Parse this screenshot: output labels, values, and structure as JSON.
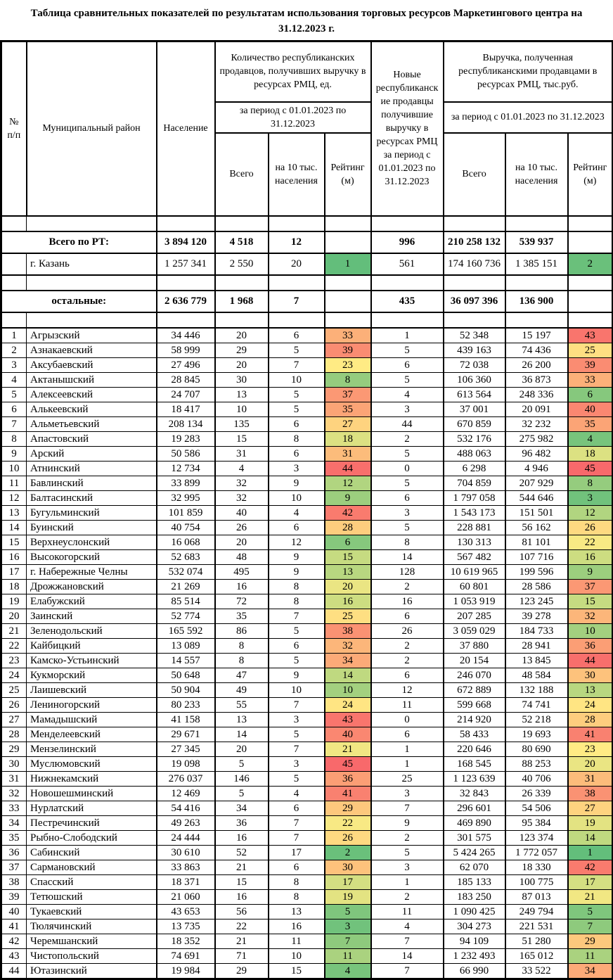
{
  "title": "Таблица сравнительных показателей по результатам использования торговых ресурсов Маркетингового центра на 31.12.2023 г.",
  "header": {
    "col_num": "№ п/п",
    "col_district": "Муниципальный район",
    "col_population": "Население",
    "group_sellers": "Количество республиканских продавцов, получивших выручку в ресурсах РМЦ, ед.",
    "period": "за период с 01.01.2023 по 31.12.2023",
    "col_new_sellers": "Новые республиканские продавцы получившие выручку в ресурсах РМЦ за период с 01.01.2023 по 31.12.2023",
    "group_revenue": "Выручка, полученная республиканскими продавцами в ресурсах РМЦ, тыс.руб.",
    "col_total": "Всего",
    "col_per10k": "на 10 тыс. населения",
    "col_rating": "Рейтинг (м)"
  },
  "rating_scale": {
    "min": 1,
    "mid": 23,
    "max": 45,
    "min_color": "#63BE7B",
    "mid_color": "#FFEB84",
    "max_color": "#F8696B"
  },
  "summary_rows": [
    {
      "label": "Всего по РТ:",
      "merged": true,
      "bold": true,
      "population": "3 894 120",
      "sellers_total": "4 518",
      "sellers_per10k": "12",
      "sellers_rating": null,
      "new_sellers": "996",
      "revenue_total": "210 258 132",
      "revenue_per10k": "539 937",
      "revenue_rating": null
    },
    {
      "label": "г. Казань",
      "merged": false,
      "bold": false,
      "population": "1 257 341",
      "sellers_total": "2 550",
      "sellers_per10k": "20",
      "sellers_rating": 1,
      "new_sellers": "561",
      "revenue_total": "174 160 736",
      "revenue_per10k": "1 385 151",
      "revenue_rating": 2
    },
    {
      "label": "остальные:",
      "merged": true,
      "bold": true,
      "population": "2 636 779",
      "sellers_total": "1 968",
      "sellers_per10k": "7",
      "sellers_rating": null,
      "new_sellers": "435",
      "revenue_total": "36 097 396",
      "revenue_per10k": "136 900",
      "revenue_rating": null
    }
  ],
  "columns_order": [
    "num",
    "name",
    "population",
    "sellers_total",
    "sellers_per10k",
    "sellers_rating",
    "new_sellers",
    "revenue_total",
    "revenue_per10k",
    "revenue_rating"
  ],
  "districts": [
    [
      "1",
      "Агрызский",
      "34 446",
      "20",
      "6",
      33,
      "1",
      "52 348",
      "15 197",
      43
    ],
    [
      "2",
      "Азнакаевский",
      "58 999",
      "29",
      "5",
      39,
      "5",
      "439 163",
      "74 436",
      25
    ],
    [
      "3",
      "Аксубаевский",
      "27 496",
      "20",
      "7",
      23,
      "6",
      "72 038",
      "26 200",
      39
    ],
    [
      "4",
      "Актанышский",
      "28 845",
      "30",
      "10",
      8,
      "5",
      "106 360",
      "36 873",
      33
    ],
    [
      "5",
      "Алексеевский",
      "24 707",
      "13",
      "5",
      37,
      "4",
      "613 564",
      "248 336",
      6
    ],
    [
      "6",
      "Алькеевский",
      "18 417",
      "10",
      "5",
      35,
      "3",
      "37 001",
      "20 091",
      40
    ],
    [
      "7",
      "Альметьевский",
      "208 134",
      "135",
      "6",
      27,
      "44",
      "670 859",
      "32 232",
      35
    ],
    [
      "8",
      "Апастовский",
      "19 283",
      "15",
      "8",
      18,
      "2",
      "532 176",
      "275 982",
      4
    ],
    [
      "9",
      "Арский",
      "50 586",
      "31",
      "6",
      31,
      "5",
      "488 063",
      "96 482",
      18
    ],
    [
      "10",
      "Атнинский",
      "12 734",
      "4",
      "3",
      44,
      "0",
      "6 298",
      "4 946",
      45
    ],
    [
      "11",
      "Бавлинский",
      "33 899",
      "32",
      "9",
      12,
      "5",
      "704 859",
      "207 929",
      8
    ],
    [
      "12",
      "Балтасинский",
      "32 995",
      "32",
      "10",
      9,
      "6",
      "1 797 058",
      "544 646",
      3
    ],
    [
      "13",
      "Бугульминский",
      "101 859",
      "40",
      "4",
      42,
      "3",
      "1 543 173",
      "151 501",
      12
    ],
    [
      "14",
      "Буинский",
      "40 754",
      "26",
      "6",
      28,
      "5",
      "228 881",
      "56 162",
      26
    ],
    [
      "15",
      "Верхнеуслонский",
      "16 068",
      "20",
      "12",
      6,
      "8",
      "130 313",
      "81 101",
      22
    ],
    [
      "16",
      "Высокогорский",
      "52 683",
      "48",
      "9",
      15,
      "14",
      "567 482",
      "107 716",
      16
    ],
    [
      "17",
      "г. Набережные Челны",
      "532 074",
      "495",
      "9",
      13,
      "128",
      "10 619 965",
      "199 596",
      9
    ],
    [
      "18",
      "Дрожжановский",
      "21 269",
      "16",
      "8",
      20,
      "2",
      "60 801",
      "28 586",
      37
    ],
    [
      "19",
      "Елабужский",
      "85 514",
      "72",
      "8",
      16,
      "16",
      "1 053 919",
      "123 245",
      15
    ],
    [
      "20",
      "Заинский",
      "52 774",
      "35",
      "7",
      25,
      "6",
      "207 285",
      "39 278",
      32
    ],
    [
      "21",
      "Зеленодольский",
      "165 592",
      "86",
      "5",
      38,
      "26",
      "3 059 029",
      "184 733",
      10
    ],
    [
      "22",
      "Кайбицкий",
      "13 089",
      "8",
      "6",
      32,
      "2",
      "37 880",
      "28 941",
      36
    ],
    [
      "23",
      "Камско-Устьинский",
      "14 557",
      "8",
      "5",
      34,
      "2",
      "20 154",
      "13 845",
      44
    ],
    [
      "24",
      "Кукморский",
      "50 648",
      "47",
      "9",
      14,
      "6",
      "246 070",
      "48 584",
      30
    ],
    [
      "25",
      "Лаишевский",
      "50 904",
      "49",
      "10",
      10,
      "12",
      "672 889",
      "132 188",
      13
    ],
    [
      "26",
      "Лениногорский",
      "80 233",
      "55",
      "7",
      24,
      "11",
      "599 668",
      "74 741",
      24
    ],
    [
      "27",
      "Мамадышский",
      "41 158",
      "13",
      "3",
      43,
      "0",
      "214 920",
      "52 218",
      28
    ],
    [
      "28",
      "Менделеевский",
      "29 671",
      "14",
      "5",
      40,
      "6",
      "58 433",
      "19 693",
      41
    ],
    [
      "29",
      "Мензелинский",
      "27 345",
      "20",
      "7",
      21,
      "1",
      "220 646",
      "80 690",
      23
    ],
    [
      "30",
      "Муслюмовский",
      "19 098",
      "5",
      "3",
      45,
      "1",
      "168 545",
      "88 253",
      20
    ],
    [
      "31",
      "Нижнекамский",
      "276 037",
      "146",
      "5",
      36,
      "25",
      "1 123 639",
      "40 706",
      31
    ],
    [
      "32",
      "Новошешминский",
      "12 469",
      "5",
      "4",
      41,
      "3",
      "32 843",
      "26 339",
      38
    ],
    [
      "33",
      "Нурлатский",
      "54 416",
      "34",
      "6",
      29,
      "7",
      "296 601",
      "54 506",
      27
    ],
    [
      "34",
      "Пестречинский",
      "49 263",
      "36",
      "7",
      22,
      "9",
      "469 890",
      "95 384",
      19
    ],
    [
      "35",
      "Рыбно-Слободский",
      "24 444",
      "16",
      "7",
      26,
      "2",
      "301 575",
      "123 374",
      14
    ],
    [
      "36",
      "Сабинский",
      "30 610",
      "52",
      "17",
      2,
      "5",
      "5 424 265",
      "1 772 057",
      1
    ],
    [
      "37",
      "Сармановский",
      "33 863",
      "21",
      "6",
      30,
      "3",
      "62 070",
      "18 330",
      42
    ],
    [
      "38",
      "Спасский",
      "18 371",
      "15",
      "8",
      17,
      "1",
      "185 133",
      "100 775",
      17
    ],
    [
      "39",
      "Тетюшский",
      "21 060",
      "16",
      "8",
      19,
      "2",
      "183 250",
      "87 013",
      21
    ],
    [
      "40",
      "Тукаевский",
      "43 653",
      "56",
      "13",
      5,
      "11",
      "1 090 425",
      "249 794",
      5
    ],
    [
      "41",
      "Тюлячинский",
      "13 735",
      "22",
      "16",
      3,
      "4",
      "304 273",
      "221 531",
      7
    ],
    [
      "42",
      "Черемшанский",
      "18 352",
      "21",
      "11",
      7,
      "7",
      "94 109",
      "51 280",
      29
    ],
    [
      "43",
      "Чистопольский",
      "74 691",
      "71",
      "10",
      11,
      "14",
      "1 232 493",
      "165 012",
      11
    ],
    [
      "44",
      "Ютазинский",
      "19 984",
      "29",
      "15",
      4,
      "7",
      "66 990",
      "33 522",
      34
    ]
  ]
}
